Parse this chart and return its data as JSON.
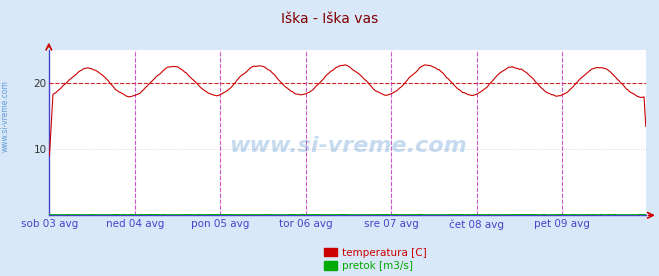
{
  "title": "Iška - Iška vas",
  "title_color": "#800000",
  "bg_color": "#d8e8f8",
  "plot_bg_color": "#ffffff",
  "yticks": [
    10,
    20
  ],
  "ylim": [
    0,
    25
  ],
  "xlabel_color": "#4444cc",
  "tick_labels": [
    "sob 03 avg",
    "ned 04 avg",
    "pon 05 avg",
    "tor 06 avg",
    "sre 07 avg",
    "čet 08 avg",
    "pet 09 avg"
  ],
  "n_points": 336,
  "temp_color": "#cc0000",
  "flow_color": "#00aa00",
  "avg_line_color": "#cc0000",
  "avg_line_value": 20.0,
  "vline_color": "#cc44cc",
  "grid_color": "#cccccc",
  "watermark": "www.si-vreme.com",
  "watermark_color": "#4488cc",
  "legend_temp": "temperatura [C]",
  "legend_flow": "pretok [m3/s]",
  "sidebar_text": "www.si-vreme.com",
  "sidebar_color": "#4488cc",
  "figwidth": 6.59,
  "figheight": 2.76,
  "dpi": 100
}
